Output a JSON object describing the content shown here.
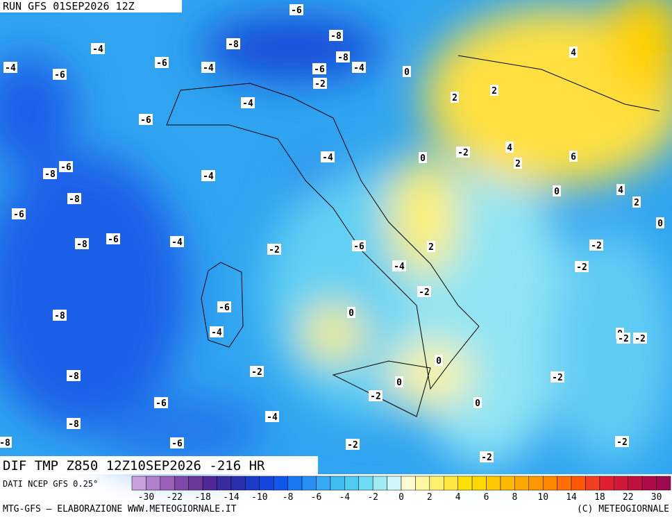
{
  "header": {
    "run": "RUN GFS 01SEP2026 12Z",
    "field": "DIF TMP Z850 12Z10SEP2026 -216 HR",
    "source": "DATI NCEP GFS 0.25°",
    "footer_left": "MTG-GFS — ELABORAZIONE WWW.METEOGIORNALE.IT",
    "footer_right": "(C) METEOGIORNALE"
  },
  "contour_labels": [
    -6,
    -4,
    -4,
    -6,
    -6,
    -8,
    -8,
    -8,
    -4,
    -6,
    -4,
    0,
    -2,
    4,
    2,
    2,
    -4,
    -6,
    4,
    6,
    2,
    -2,
    0,
    -4,
    -8,
    -6,
    -4,
    0,
    4,
    2,
    -8,
    -6,
    0,
    -8,
    -6,
    -4,
    -2,
    -6,
    2,
    -2,
    -2,
    -4,
    -2,
    -6,
    0,
    -8,
    -4,
    0,
    -2,
    -2,
    0,
    -2,
    -8,
    0,
    -2,
    -2,
    -6,
    0,
    -4,
    -8,
    -6,
    -2,
    -2,
    -2,
    -8
  ],
  "colorbar": {
    "colors": [
      "#c8a0dc",
      "#b080cc",
      "#9a60b8",
      "#8048a8",
      "#6a3898",
      "#50289a",
      "#3a2aa0",
      "#2830b0",
      "#1c3cc8",
      "#1448dc",
      "#1058ec",
      "#1878f4",
      "#2890f4",
      "#38a8f4",
      "#40bcf4",
      "#50ccf4",
      "#70dcf4",
      "#a0eaf4",
      "#d0f8f8",
      "#fffcd0",
      "#fff8a0",
      "#fff070",
      "#ffe840",
      "#ffe000",
      "#ffd800",
      "#ffc800",
      "#ffb800",
      "#ffa800",
      "#ff9800",
      "#ff8800",
      "#ff7000",
      "#ff5800",
      "#f04020",
      "#e02030",
      "#d01838",
      "#c01040",
      "#b00848",
      "#a00850"
    ],
    "ticks": [
      -30,
      -22,
      -18,
      -14,
      -10,
      -8,
      -6,
      -4,
      -2,
      0,
      2,
      4,
      6,
      8,
      10,
      14,
      18,
      22,
      30
    ]
  }
}
